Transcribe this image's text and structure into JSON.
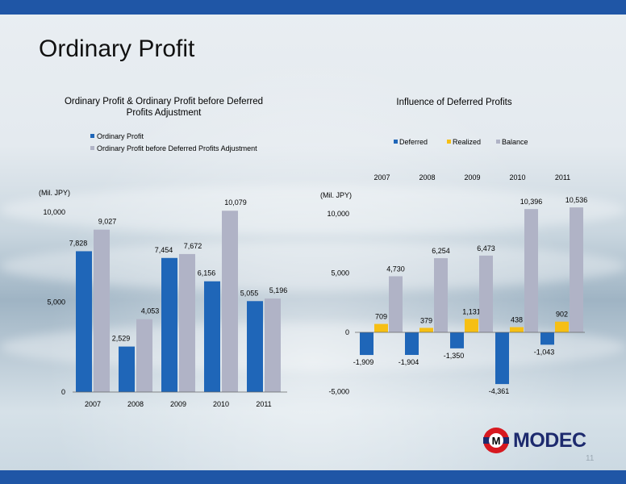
{
  "page": {
    "title": "Ordinary Profit",
    "logo_text": "MODEC",
    "page_number": "11"
  },
  "colors": {
    "top_bar": "#1f56a6",
    "ordinary_profit": "#1f66b8",
    "adjusted_profit": "#b0b3c6",
    "deferred": "#1f66b8",
    "realized": "#f6bf14",
    "balance": "#b0b3c6"
  },
  "chart_data": [
    {
      "type": "bar",
      "title": "Ordinary Profit & Ordinary Profit before Deferred Profits Adjustment",
      "title_lines": [
        "Ordinary Profit & Ordinary Profit before Deferred",
        "Profits Adjustment"
      ],
      "unit_label": "(Mil. JPY)",
      "categories": [
        "2007",
        "2008",
        "2009",
        "2010",
        "2011"
      ],
      "series": [
        {
          "name": "Ordinary Profit",
          "values": [
            7828,
            2529,
            7454,
            6156,
            5055
          ],
          "labels": [
            "7,828",
            "2,529",
            "7,454",
            "6,156",
            "5,055"
          ]
        },
        {
          "name": "Ordinary Profit before Deferred Profits Adjustment",
          "values": [
            9027,
            4053,
            7672,
            10079,
            5196
          ],
          "labels": [
            "9,027",
            "4,053",
            "7,672",
            "10,079",
            "5,196"
          ]
        }
      ],
      "y_ticks": [
        {
          "v": 0,
          "label": "0"
        },
        {
          "v": 5000,
          "label": "5,000"
        },
        {
          "v": 10000,
          "label": "10,000"
        }
      ],
      "ylim": [
        0,
        10000
      ],
      "legend_position": "top"
    },
    {
      "type": "bar",
      "title": "Influence of Deferred Profits",
      "title_lines": [
        "Influence of Deferred Profits"
      ],
      "unit_label": "(Mil. JPY)",
      "categories": [
        "2007",
        "2008",
        "2009",
        "2010",
        "2011"
      ],
      "series": [
        {
          "name": "Deferred",
          "values": [
            -1909,
            -1904,
            -1350,
            -4361,
            -1043
          ],
          "labels": [
            "-1,909",
            "-1,904",
            "-1,350",
            "-4,361",
            "-1,043"
          ]
        },
        {
          "name": "Realized",
          "values": [
            709,
            379,
            1131,
            438,
            902
          ],
          "labels": [
            "709",
            "379",
            "1,131",
            "438",
            "902"
          ]
        },
        {
          "name": "Balance",
          "values": [
            4730,
            6254,
            6473,
            10396,
            10536
          ],
          "labels": [
            "4,730",
            "6,254",
            "6,473",
            "10,396",
            "10,536"
          ]
        }
      ],
      "y_ticks": [
        {
          "v": -5000,
          "label": "-5,000"
        },
        {
          "v": 0,
          "label": "0"
        },
        {
          "v": 5000,
          "label": "5,000"
        },
        {
          "v": 10000,
          "label": "10,000"
        }
      ],
      "ylim": [
        -5000,
        10000
      ],
      "legend_position": "top",
      "x_labels_position": "top"
    }
  ]
}
